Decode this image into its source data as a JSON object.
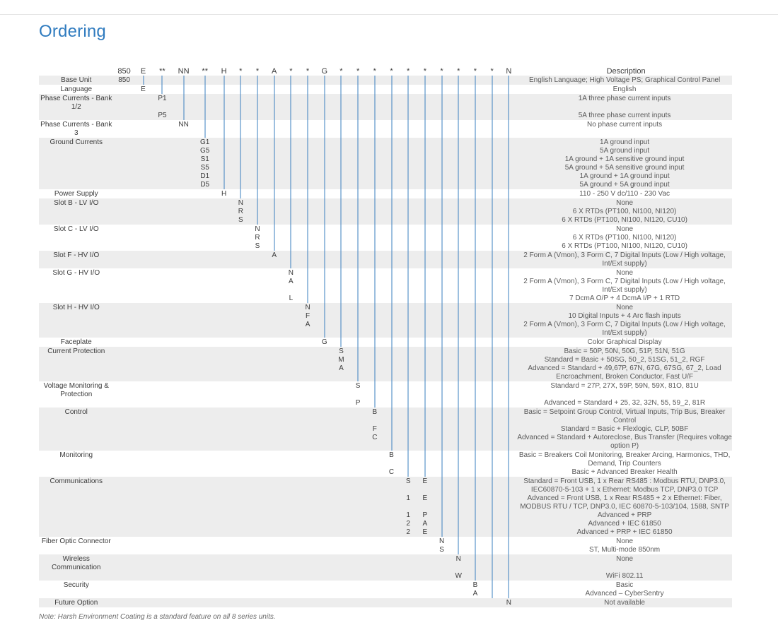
{
  "title": "Ordering",
  "title_color": "#2f7bbf",
  "line_color": "#3a7fbf",
  "stripe_color": "#ededed",
  "footnote": "Note: Harsh Environment Coating is a standard feature on all 8 series units.",
  "header_description_label": "Description",
  "columns": [
    {
      "key": "c0",
      "label": "850",
      "wide": true
    },
    {
      "key": "c1",
      "label": "E"
    },
    {
      "key": "c2",
      "label": "**",
      "wide": true
    },
    {
      "key": "c3",
      "label": "NN",
      "wide": true
    },
    {
      "key": "c4",
      "label": "**",
      "wide": true
    },
    {
      "key": "c5",
      "label": "H"
    },
    {
      "key": "c6",
      "label": "*"
    },
    {
      "key": "c7",
      "label": "*"
    },
    {
      "key": "c8",
      "label": "A"
    },
    {
      "key": "c9",
      "label": "*"
    },
    {
      "key": "c10",
      "label": "*"
    },
    {
      "key": "c11",
      "label": "G"
    },
    {
      "key": "c12",
      "label": "*"
    },
    {
      "key": "c13",
      "label": "*"
    },
    {
      "key": "c14",
      "label": "*"
    },
    {
      "key": "c15",
      "label": "*"
    },
    {
      "key": "c16",
      "label": "*"
    },
    {
      "key": "c17",
      "label": "*"
    },
    {
      "key": "c18",
      "label": "*"
    },
    {
      "key": "c19",
      "label": "*"
    },
    {
      "key": "c20",
      "label": "*"
    },
    {
      "key": "c21",
      "label": "*"
    },
    {
      "key": "c22",
      "label": "N"
    }
  ],
  "groups": [
    {
      "name": "Base Unit",
      "col": 0,
      "striped": true,
      "rows": [
        {
          "code": "850",
          "desc": "English Language; High Voltage PS; Graphical Control Panel"
        }
      ]
    },
    {
      "name": "Language",
      "col": 1,
      "striped": false,
      "rows": [
        {
          "code": "E",
          "desc": "English"
        }
      ]
    },
    {
      "name": "Phase Currents - Bank 1/2",
      "col": 2,
      "striped": true,
      "rows": [
        {
          "code": "P1",
          "desc": "1A three phase current inputs"
        },
        {
          "code": "P5",
          "desc": "5A three phase current inputs"
        }
      ]
    },
    {
      "name": "Phase Currents - Bank 3",
      "col": 3,
      "striped": false,
      "rows": [
        {
          "code": "NN",
          "desc": "No phase current inputs"
        }
      ]
    },
    {
      "name": "Ground Currents",
      "col": 4,
      "striped": true,
      "rows": [
        {
          "code": "G1",
          "desc": "1A ground input"
        },
        {
          "code": "G5",
          "desc": "5A ground input"
        },
        {
          "code": "S1",
          "desc": "1A ground + 1A sensitive ground input"
        },
        {
          "code": "S5",
          "desc": "5A ground + 5A sensitive ground input"
        },
        {
          "code": "D1",
          "desc": "1A ground + 1A ground input"
        },
        {
          "code": "D5",
          "desc": "5A ground + 5A ground input"
        }
      ]
    },
    {
      "name": "Power Supply",
      "col": 5,
      "striped": false,
      "rows": [
        {
          "code": "H",
          "desc": "110 - 250 V dc/110 - 230 Vac"
        }
      ]
    },
    {
      "name": "Slot B - LV I/O",
      "col": 6,
      "striped": true,
      "rows": [
        {
          "code": "N",
          "desc": "None"
        },
        {
          "code": "R",
          "desc": "6 X RTDs (PT100, NI100, NI120)"
        },
        {
          "code": "S",
          "desc": "6 X RTDs (PT100, NI100, NI120, CU10)"
        }
      ]
    },
    {
      "name": "Slot C - LV I/O",
      "col": 7,
      "striped": false,
      "rows": [
        {
          "code": "N",
          "desc": "None"
        },
        {
          "code": "R",
          "desc": "6 X RTDs (PT100, NI100, NI120)"
        },
        {
          "code": "S",
          "desc": "6 X RTDs (PT100, NI100, NI120, CU10)"
        }
      ]
    },
    {
      "name": "Slot F - HV I/O",
      "col": 8,
      "striped": true,
      "rows": [
        {
          "code": "A",
          "desc": "2 Form A (Vmon), 3 Form C, 7 Digital Inputs (Low / High voltage, Int/Ext supply)"
        }
      ]
    },
    {
      "name": "Slot G - HV I/O",
      "col": 9,
      "striped": false,
      "rows": [
        {
          "code": "N",
          "desc": "None"
        },
        {
          "code": "A",
          "desc": "2 Form A (Vmon), 3 Form C, 7 Digital Inputs (Low / High voltage, Int/Ext supply)"
        },
        {
          "code": "L",
          "desc": "7 DcmA O/P + 4 DcmA I/P + 1 RTD"
        }
      ]
    },
    {
      "name": "Slot H - HV I/O",
      "col": 10,
      "striped": true,
      "rows": [
        {
          "code": "N",
          "desc": "None"
        },
        {
          "code": "F",
          "desc": "10 Digital Inputs + 4 Arc flash inputs"
        },
        {
          "code": "A",
          "desc": "2 Form A (Vmon), 3 Form C, 7 Digital Inputs (Low / High voltage, Int/Ext supply)"
        }
      ]
    },
    {
      "name": "Faceplate",
      "col": 11,
      "striped": false,
      "rows": [
        {
          "code": "G",
          "desc": "Color Graphical Display"
        }
      ]
    },
    {
      "name": "Current Protection",
      "col": 12,
      "striped": true,
      "rows": [
        {
          "code": "S",
          "desc": "Basic =  50P, 50N, 50G, 51P, 51N, 51G"
        },
        {
          "code": "M",
          "desc": "Standard = Basic + 50SG, 50_2, 51SG, 51_2, RGF"
        },
        {
          "code": "A",
          "desc": "Advanced = Standard + 49,67P, 67N, 67G, 67SG, 67_2, Load Encroachment, Broken Conductor, Fast U/F"
        }
      ]
    },
    {
      "name": "Voltage Monitoring & Protection",
      "col": 13,
      "striped": false,
      "rows": [
        {
          "code": "S",
          "desc": "Standard = 27P, 27X, 59P, 59N, 59X, 81O, 81U"
        },
        {
          "code": "P",
          "desc": "Advanced = Standard + 25, 32, 32N, 55, 59_2, 81R"
        }
      ]
    },
    {
      "name": "Control",
      "col": 14,
      "striped": true,
      "rows": [
        {
          "code": "B",
          "desc": "Basic = Setpoint Group Control, Virtual Inputs, Trip Bus, Breaker Control"
        },
        {
          "code": "F",
          "desc": "Standard = Basic + Flexlogic, CLP, 50BF"
        },
        {
          "code": "C",
          "desc": "Advanced = Standard + Autoreclose, Bus Transfer (Requires voltage option P)"
        }
      ]
    },
    {
      "name": "Monitoring",
      "col": 15,
      "striped": false,
      "rows": [
        {
          "code": "B",
          "desc": "Basic = Breakers Coil Monitoring, Breaker Arcing, Harmonics, THD, Demand, Trip Counters"
        },
        {
          "code": "C",
          "desc": "Basic + Advanced Breaker Health"
        }
      ]
    },
    {
      "name": "Communications",
      "col": 16,
      "col2": 17,
      "striped": true,
      "rows": [
        {
          "code": "S",
          "code2": "E",
          "desc": "Standard = Front USB, 1 x Rear RS485 : Modbus RTU, DNP3.0, IEC60870-5-103 + 1 x Ethernet: Modbus TCP, DNP3.0 TCP"
        },
        {
          "code": "1",
          "code2": "E",
          "desc": "Advanced = Front USB, 1 x Rear RS485 + 2 x Ethernet: Fiber, MODBUS RTU / TCP, DNP3.0, IEC 60870-5-103/104, 1588, SNTP"
        },
        {
          "code": "1",
          "code2": "P",
          "desc": "Advanced + PRP"
        },
        {
          "code": "2",
          "code2": "A",
          "desc": "Advanced + IEC 61850"
        },
        {
          "code": "2",
          "code2": "E",
          "desc": "Advanced + PRP + IEC 61850"
        }
      ]
    },
    {
      "name": "Fiber Optic Connector",
      "col": 18,
      "striped": false,
      "rows": [
        {
          "code": "N",
          "desc": "None"
        },
        {
          "code": "S",
          "desc": "ST, Multi-mode 850nm"
        }
      ]
    },
    {
      "name": "Wireless Communication",
      "col": 19,
      "striped": true,
      "rows": [
        {
          "code": "N",
          "desc": "None"
        },
        {
          "code": "W",
          "desc": "WiFi 802.11"
        }
      ]
    },
    {
      "name": "Security",
      "col": 20,
      "striped": false,
      "rows": [
        {
          "code": "B",
          "desc": "Basic"
        },
        {
          "code": "A",
          "desc": "Advanced – CyberSentry"
        }
      ]
    },
    {
      "name": "Future Option",
      "col": 22,
      "striped": true,
      "rows": [
        {
          "code": "N",
          "desc": "Not available"
        }
      ]
    }
  ]
}
